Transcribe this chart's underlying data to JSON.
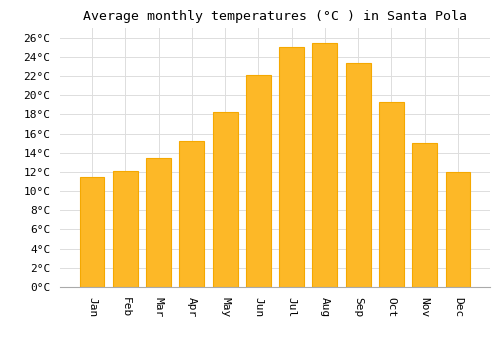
{
  "title": "Average monthly temperatures (°C ) in Santa Pola",
  "months": [
    "Jan",
    "Feb",
    "Mar",
    "Apr",
    "May",
    "Jun",
    "Jul",
    "Aug",
    "Sep",
    "Oct",
    "Nov",
    "Dec"
  ],
  "values": [
    11.5,
    12.1,
    13.4,
    15.2,
    18.2,
    22.1,
    25.0,
    25.4,
    23.4,
    19.3,
    15.0,
    12.0
  ],
  "bar_color": "#FDB827",
  "bar_edge_color": "#F5A800",
  "background_color": "#FFFFFF",
  "grid_color": "#DDDDDD",
  "ylim": [
    0,
    27
  ],
  "yticks": [
    0,
    2,
    4,
    6,
    8,
    10,
    12,
    14,
    16,
    18,
    20,
    22,
    24,
    26
  ],
  "title_fontsize": 9.5,
  "tick_fontsize": 8,
  "font_family": "monospace"
}
